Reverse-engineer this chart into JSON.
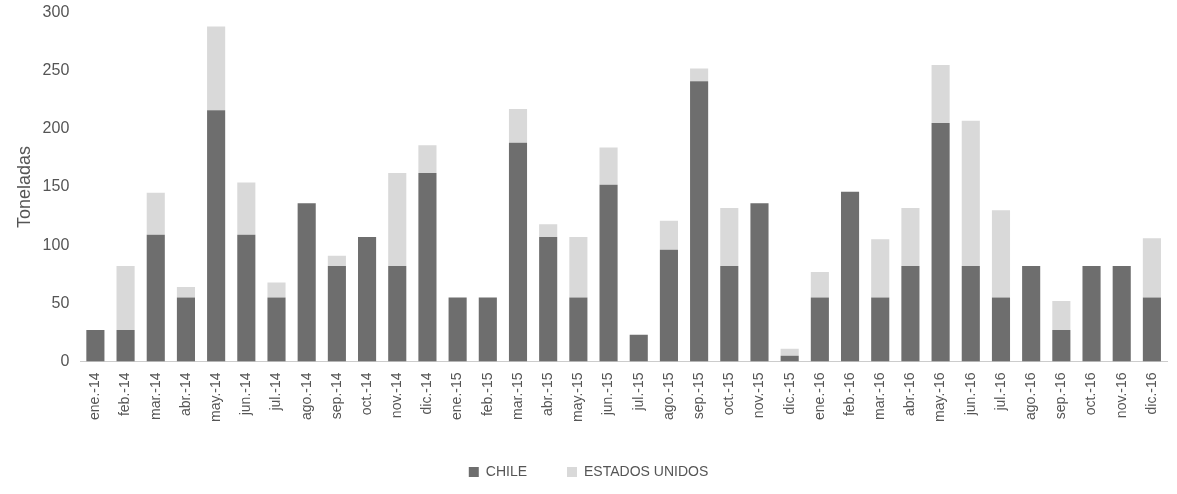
{
  "chart_data": {
    "type": "bar",
    "ylabel": "Toneladas",
    "stacked": true,
    "legend": "bottom",
    "grid": false,
    "categories": [
      "ene.-14",
      "feb.-14",
      "mar.-14",
      "abr.-14",
      "may.-14",
      "jun.-14",
      "jul.-14",
      "ago.-14",
      "sep.-14",
      "oct.-14",
      "nov.-14",
      "dic.-14",
      "ene.-15",
      "feb.-15",
      "mar.-15",
      "abr.-15",
      "may.-15",
      "jun.-15",
      "jul.-15",
      "ago.-15",
      "sep.-15",
      "oct.-15",
      "nov.-15",
      "dic.-15",
      "ene.-16",
      "feb.-16",
      "mar.-16",
      "abr.-16",
      "may.-16",
      "jun.-16",
      "jul.-16",
      "ago.-16",
      "sep.-16",
      "oct.-16",
      "nov.-16",
      "dic.-16"
    ],
    "ylim": [
      0,
      300
    ],
    "yticks": [
      0,
      50,
      100,
      150,
      200,
      250,
      300
    ],
    "series": [
      {
        "name": "CHILE",
        "color": "#6e6e6e",
        "values": [
          27,
          27,
          109,
          55,
          216,
          109,
          55,
          136,
          82,
          107,
          82,
          162,
          55,
          55,
          188,
          107,
          55,
          152,
          23,
          96,
          241,
          82,
          136,
          5,
          55,
          146,
          55,
          82,
          205,
          82,
          55,
          82,
          27,
          82,
          82,
          55
        ]
      },
      {
        "name": "ESTADOS UNIDOS",
        "color": "#d9d9d9",
        "values": [
          0,
          55,
          36,
          9,
          72,
          45,
          13,
          0,
          9,
          0,
          80,
          24,
          0,
          0,
          29,
          11,
          52,
          32,
          0,
          25,
          11,
          50,
          0,
          6,
          22,
          0,
          50,
          50,
          50,
          125,
          75,
          0,
          25,
          0,
          0,
          51
        ]
      }
    ]
  }
}
